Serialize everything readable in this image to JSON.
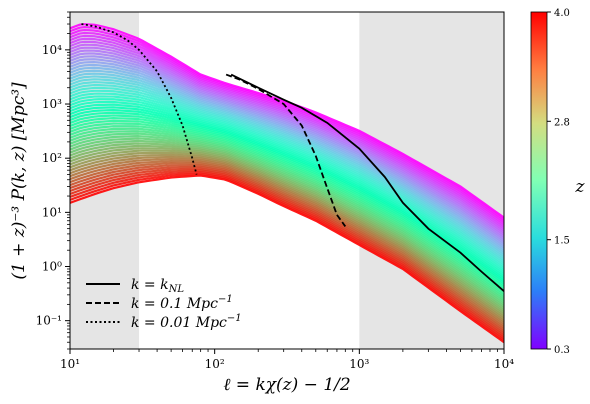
{
  "chart_data": {
    "type": "line",
    "xlabel": "ℓ = kχ(z) − 1/2",
    "ylabel": "(1 + z)⁻³ P(k, z)  [Mpc³]",
    "xscale": "log",
    "yscale": "log",
    "xlim": [
      10,
      10000
    ],
    "ylim": [
      0.03,
      50000
    ],
    "x_ticks": [
      10,
      100,
      1000,
      10000
    ],
    "x_tick_labels": [
      "10¹",
      "10²",
      "10³",
      "10⁴"
    ],
    "y_ticks": [
      0.1,
      1,
      10,
      100,
      1000,
      10000
    ],
    "y_tick_labels": [
      "10⁻¹",
      "10⁰",
      "10¹",
      "10²",
      "10³",
      "10⁴"
    ],
    "shaded_x_regions": [
      [
        10,
        30
      ],
      [
        1000,
        10000
      ]
    ],
    "shade_color": "#e5e5e5",
    "grid": false,
    "legend_placement": "lower-left",
    "colorbar": {
      "label": "z",
      "colormap": "rainbow",
      "range": [
        0.3,
        4.0
      ],
      "ticks": [
        0.3,
        1.5,
        2.8,
        4.0
      ],
      "tick_labels": [
        "0.3",
        "1.5",
        "2.8",
        "4.0"
      ]
    },
    "z_family": {
      "count": 60,
      "z_min": 0.3,
      "z_max": 4.0,
      "envelope_low_z": {
        "x": [
          10,
          12,
          15,
          20,
          30,
          50,
          80,
          120,
          200,
          300,
          500,
          1000,
          2000,
          5000,
          10000
        ],
        "y": [
          25000,
          30000,
          29000,
          24000,
          16000,
          7500,
          3500,
          2400,
          1600,
          1150,
          700,
          320,
          120,
          30,
          8
        ]
      },
      "envelope_high_z": {
        "x": [
          10,
          15,
          20,
          30,
          50,
          80,
          120,
          200,
          300,
          500,
          1000,
          2000,
          5000,
          10000
        ],
        "y": [
          15,
          22,
          28,
          36,
          44,
          48,
          40,
          22,
          13,
          7,
          2.5,
          0.9,
          0.15,
          0.04
        ]
      }
    },
    "series": [
      {
        "name": "k = k_NL",
        "style": "solid",
        "x": [
          130,
          200,
          300,
          400,
          600,
          1000,
          1500,
          2000,
          3000,
          5000,
          7000,
          10000
        ],
        "y": [
          3500,
          2000,
          1200,
          850,
          450,
          150,
          45,
          15,
          5,
          1.8,
          0.8,
          0.35
        ]
      },
      {
        "name": "k = 0.1 Mpc⁻¹",
        "style": "dashed",
        "x": [
          120,
          150,
          200,
          300,
          400,
          500,
          600,
          700,
          800
        ],
        "y": [
          3500,
          2800,
          1900,
          1000,
          400,
          110,
          28,
          9,
          5.5
        ]
      },
      {
        "name": "k = 0.01 Mpc⁻¹",
        "style": "dotted",
        "x": [
          12,
          15,
          20,
          25,
          30,
          40,
          50,
          60,
          70,
          75
        ],
        "y": [
          30000,
          27000,
          21000,
          15000,
          10000,
          4000,
          1300,
          400,
          100,
          50
        ]
      }
    ]
  },
  "legend": {
    "items": [
      {
        "label": "k = k",
        "sub": "NL",
        "style": "solid"
      },
      {
        "label": "k = 0.1 Mpc",
        "sup": "−1",
        "style": "dashed"
      },
      {
        "label": "k = 0.01 Mpc",
        "sup": "−1",
        "style": "dotted"
      }
    ]
  }
}
